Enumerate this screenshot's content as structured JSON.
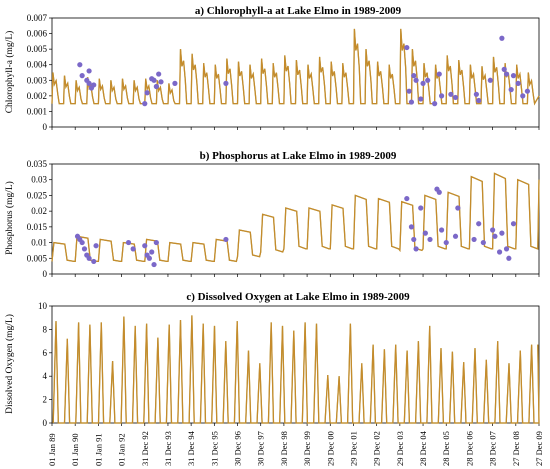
{
  "colors": {
    "simulated": "#c58b2c",
    "simulated_green": "#8aa23a",
    "observed": "#7b68c8",
    "dotted": "#cfa9a9"
  },
  "x_tick_labels": [
    "01 Jan 89",
    "01 Jan 90",
    "01 Jan 91",
    "01 Jan 92",
    "31 Dec 92",
    "31 Dec 93",
    "31 Dec 94",
    "31 Dec 95",
    "30 Dec 96",
    "30 Dec 97",
    "30 Dec 98",
    "30 Dec 99",
    "29 Dec 00",
    "29 Dec 01",
    "29 Dec 02",
    "29 Dec 03",
    "28 Dec 04",
    "28 Dec 05",
    "28 Dec 06",
    "28 Dec 07",
    "27 Dec 08",
    "27 Dec 09"
  ],
  "chart_data": [
    {
      "type": "line",
      "title": "a) Chlorophyll-a at Lake Elmo in 1989-2009",
      "ylabel": "Chlorophyll-a (mg/L)",
      "ylim": [
        0,
        0.007
      ],
      "yticks": [
        "0",
        "0.001",
        "0.002",
        "0.003",
        "0.004",
        "0.005",
        "0.006",
        "0.007"
      ],
      "series": [
        {
          "role": "simulated",
          "baseline": 0.0015,
          "seasonal_peaks": [
            0.0035,
            0.0033,
            0.003,
            0.0032,
            0.0031,
            0.003,
            0.0031,
            0.003,
            0.0031,
            0.003,
            0.0028,
            0.005,
            0.0047,
            0.0041,
            0.004,
            0.0044,
            0.0042,
            0.004,
            0.0044,
            0.0041,
            0.0046,
            0.0043,
            0.004,
            0.0045,
            0.0042,
            0.0041,
            0.0063,
            0.005,
            0.0042,
            0.004,
            0.0063,
            0.005,
            0.0041,
            0.004,
            0.0046,
            0.0043,
            0.004,
            0.0039,
            0.0045,
            0.0041,
            0.004,
            0.0035
          ]
        },
        {
          "role": "observed",
          "points": [
            [
              1.2,
              0.004
            ],
            [
              1.3,
              0.0033
            ],
            [
              1.5,
              0.003
            ],
            [
              1.6,
              0.0028
            ],
            [
              1.7,
              0.0025
            ],
            [
              1.8,
              0.0027
            ],
            [
              1.6,
              0.0036
            ],
            [
              4.0,
              0.0015
            ],
            [
              4.1,
              0.0022
            ],
            [
              4.3,
              0.0031
            ],
            [
              4.4,
              0.003
            ],
            [
              4.5,
              0.0026
            ],
            [
              4.6,
              0.0034
            ],
            [
              4.7,
              0.0029
            ],
            [
              5.3,
              0.0028
            ],
            [
              7.5,
              0.0028
            ],
            [
              15.3,
              0.0051
            ],
            [
              15.4,
              0.0023
            ],
            [
              15.5,
              0.0016
            ],
            [
              15.6,
              0.0033
            ],
            [
              15.7,
              0.003
            ],
            [
              15.9,
              0.0018
            ],
            [
              16.0,
              0.0028
            ],
            [
              16.2,
              0.003
            ],
            [
              16.5,
              0.0015
            ],
            [
              16.7,
              0.0034
            ],
            [
              16.8,
              0.002
            ],
            [
              17.2,
              0.0021
            ],
            [
              17.4,
              0.0019
            ],
            [
              18.3,
              0.0021
            ],
            [
              18.4,
              0.0017
            ],
            [
              18.9,
              0.003
            ],
            [
              19.4,
              0.0057
            ],
            [
              19.5,
              0.0037
            ],
            [
              19.6,
              0.0034
            ],
            [
              19.8,
              0.0024
            ],
            [
              19.9,
              0.0033
            ],
            [
              20.1,
              0.0028
            ],
            [
              20.3,
              0.002
            ],
            [
              20.5,
              0.0023
            ]
          ]
        }
      ]
    },
    {
      "type": "line",
      "title": "b) Phosphorus at Lake Elmo in 1989-2009",
      "ylabel": "Phosphorus (mg/L)",
      "ylim": [
        0,
        0.035
      ],
      "yticks": [
        "0",
        "0.005",
        "0.01",
        "0.015",
        "0.02",
        "0.025",
        "0.03",
        "0.035"
      ],
      "series": [
        {
          "role": "simulated",
          "low": [
            0.004,
            0.004,
            0.004,
            0.004,
            0.004,
            0.004,
            0.004,
            0.004,
            0.0055,
            0.007,
            0.008,
            0.008,
            0.008,
            0.008,
            0.008,
            0.0075,
            0.008,
            0.008,
            0.008,
            0.008,
            0.008
          ],
          "high": [
            0.01,
            0.012,
            0.011,
            0.01,
            0.011,
            0.01,
            0.01,
            0.011,
            0.014,
            0.019,
            0.021,
            0.021,
            0.022,
            0.025,
            0.024,
            0.023,
            0.025,
            0.026,
            0.031,
            0.032,
            0.03
          ]
        },
        {
          "role": "observed",
          "points": [
            [
              1.1,
              0.012
            ],
            [
              1.2,
              0.011
            ],
            [
              1.3,
              0.01
            ],
            [
              1.4,
              0.008
            ],
            [
              1.5,
              0.006
            ],
            [
              1.6,
              0.005
            ],
            [
              1.8,
              0.004
            ],
            [
              1.9,
              0.009
            ],
            [
              3.3,
              0.01
            ],
            [
              3.5,
              0.008
            ],
            [
              4.0,
              0.009
            ],
            [
              4.1,
              0.006
            ],
            [
              4.2,
              0.005
            ],
            [
              4.3,
              0.007
            ],
            [
              4.4,
              0.003
            ],
            [
              4.5,
              0.01
            ],
            [
              7.5,
              0.011
            ],
            [
              15.3,
              0.024
            ],
            [
              15.5,
              0.015
            ],
            [
              15.6,
              0.011
            ],
            [
              15.7,
              0.008
            ],
            [
              15.9,
              0.021
            ],
            [
              16.1,
              0.013
            ],
            [
              16.3,
              0.011
            ],
            [
              16.6,
              0.027
            ],
            [
              16.7,
              0.026
            ],
            [
              16.8,
              0.014
            ],
            [
              17.0,
              0.01
            ],
            [
              17.4,
              0.012
            ],
            [
              17.5,
              0.021
            ],
            [
              18.2,
              0.011
            ],
            [
              18.4,
              0.016
            ],
            [
              18.6,
              0.01
            ],
            [
              19.0,
              0.014
            ],
            [
              19.1,
              0.012
            ],
            [
              19.3,
              0.007
            ],
            [
              19.4,
              0.013
            ],
            [
              19.6,
              0.008
            ],
            [
              19.7,
              0.005
            ],
            [
              19.9,
              0.016
            ]
          ]
        }
      ]
    },
    {
      "type": "line",
      "title": "c) Dissolved Oxygen at Lake Elmo in 1989-2009",
      "ylabel": "Dissolved Oxygen (mg/L)",
      "ylim": [
        0,
        10
      ],
      "yticks": [
        "0",
        "2",
        "4",
        "6",
        "8",
        "10"
      ],
      "series": [
        {
          "role": "simulated",
          "peaks": [
            8.7,
            7.2,
            8.6,
            8.4,
            8.6,
            5.3,
            9.1,
            8.3,
            8.5,
            7.3,
            8.4,
            8.8,
            9.2,
            8.5,
            8.3,
            7.0,
            8.7,
            6.2,
            5.1,
            8.6,
            8.3,
            7.9,
            8.6,
            8.5,
            4.1,
            4.0,
            8.5,
            5.1,
            6.7,
            6.3,
            6.7,
            6.2,
            7.0,
            8.3,
            6.4,
            6.1,
            5.2,
            6.4,
            5.4,
            7.0,
            5.1,
            6.2,
            6.7
          ]
        }
      ]
    }
  ]
}
